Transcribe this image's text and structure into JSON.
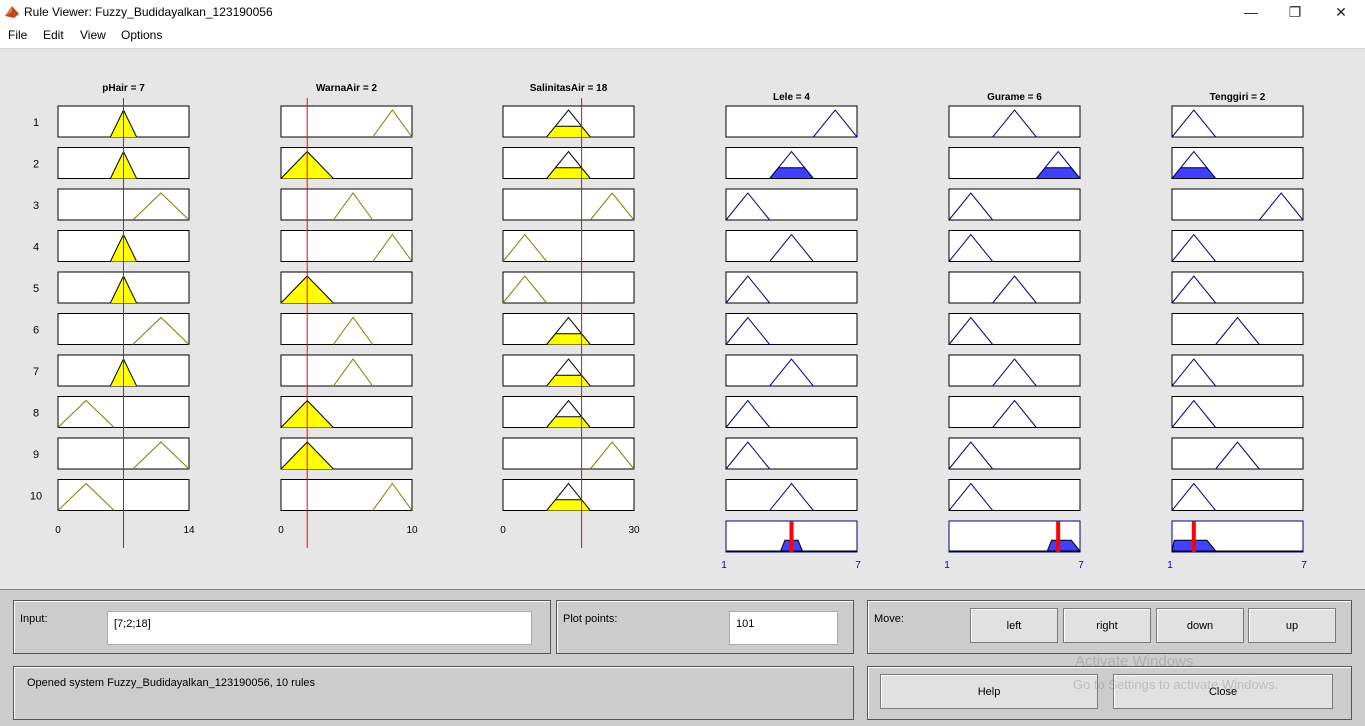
{
  "window": {
    "title": "Rule Viewer: Fuzzy_Budidayalkan_123190056",
    "minimize": "—",
    "maximize": "❐",
    "close": "✕"
  },
  "menu": [
    "File",
    "Edit",
    "View",
    "Options"
  ],
  "inputs": [
    {
      "label": "pHair = 7",
      "min": "0",
      "max": "14",
      "range": [
        0,
        14
      ],
      "value": 7,
      "rules": [
        {
          "type": "tri",
          "p": [
            5.6,
            7,
            8.4
          ]
        },
        {
          "type": "tri",
          "p": [
            5.6,
            7,
            8.4
          ]
        },
        {
          "type": "tri",
          "p": [
            8,
            11,
            14
          ]
        },
        {
          "type": "tri",
          "p": [
            5.6,
            7,
            8.4
          ]
        },
        {
          "type": "tri",
          "p": [
            5.6,
            7,
            8.4
          ]
        },
        {
          "type": "tri",
          "p": [
            8,
            11,
            14
          ]
        },
        {
          "type": "tri",
          "p": [
            5.6,
            7,
            8.4
          ]
        },
        {
          "type": "tri",
          "p": [
            0,
            3,
            6
          ]
        },
        {
          "type": "tri",
          "p": [
            8,
            11,
            14
          ]
        },
        {
          "type": "tri",
          "p": [
            0,
            3,
            6
          ]
        }
      ]
    },
    {
      "label": "WarnaAir = 2",
      "min": "0",
      "max": "10",
      "range": [
        0,
        10
      ],
      "value": 2,
      "rules": [
        {
          "type": "tri",
          "p": [
            7,
            8.5,
            10
          ]
        },
        {
          "type": "tri",
          "p": [
            0,
            2,
            4
          ]
        },
        {
          "type": "tri",
          "p": [
            4,
            5.5,
            7
          ]
        },
        {
          "type": "tri",
          "p": [
            7,
            8.5,
            10
          ]
        },
        {
          "type": "tri",
          "p": [
            0,
            2,
            4
          ]
        },
        {
          "type": "tri",
          "p": [
            4,
            5.5,
            7
          ]
        },
        {
          "type": "tri",
          "p": [
            4,
            5.5,
            7
          ]
        },
        {
          "type": "tri",
          "p": [
            0,
            2,
            4
          ]
        },
        {
          "type": "tri",
          "p": [
            0,
            2,
            4
          ]
        },
        {
          "type": "tri",
          "p": [
            7,
            8.5,
            10
          ]
        }
      ]
    },
    {
      "label": "SalinitasAir = 18",
      "min": "0",
      "max": "30",
      "range": [
        0,
        30
      ],
      "value": 18,
      "rules": [
        {
          "type": "tri",
          "p": [
            10,
            15,
            20
          ]
        },
        {
          "type": "tri",
          "p": [
            10,
            15,
            20
          ]
        },
        {
          "type": "tri",
          "p": [
            20,
            25,
            30
          ]
        },
        {
          "type": "tri",
          "p": [
            0,
            5,
            10
          ]
        },
        {
          "type": "tri",
          "p": [
            0,
            5,
            10
          ]
        },
        {
          "type": "tri",
          "p": [
            10,
            15,
            20
          ]
        },
        {
          "type": "tri",
          "p": [
            10,
            15,
            20
          ]
        },
        {
          "type": "tri",
          "p": [
            10,
            15,
            20
          ]
        },
        {
          "type": "tri",
          "p": [
            20,
            25,
            30
          ]
        },
        {
          "type": "tri",
          "p": [
            10,
            15,
            20
          ]
        }
      ]
    }
  ],
  "outputs": [
    {
      "label": "Lele = 4",
      "min": "1",
      "max": "7",
      "range": [
        1,
        7
      ],
      "value": 4,
      "rules": [
        {
          "p": [
            5,
            6,
            7
          ]
        },
        {
          "p": [
            3,
            4,
            5
          ]
        },
        {
          "p": [
            1,
            2,
            3
          ]
        },
        {
          "p": [
            3,
            4,
            5
          ]
        },
        {
          "p": [
            1,
            2,
            3
          ]
        },
        {
          "p": [
            1,
            2,
            3
          ]
        },
        {
          "p": [
            3,
            4,
            5
          ]
        },
        {
          "p": [
            1,
            2,
            3
          ]
        },
        {
          "p": [
            1,
            2,
            3
          ]
        },
        {
          "p": [
            3,
            4,
            5
          ]
        }
      ],
      "agg": [
        [
          1,
          0
        ],
        [
          3.5,
          0
        ],
        [
          3.7,
          0.4
        ],
        [
          4.3,
          0.4
        ],
        [
          4.5,
          0
        ],
        [
          7,
          0
        ]
      ]
    },
    {
      "label": "Gurame = 6",
      "min": "1",
      "max": "7",
      "range": [
        1,
        7
      ],
      "value": 6,
      "rules": [
        {
          "p": [
            3,
            4,
            5
          ]
        },
        {
          "p": [
            5,
            6,
            7
          ]
        },
        {
          "p": [
            1,
            2,
            3
          ]
        },
        {
          "p": [
            1,
            2,
            3
          ]
        },
        {
          "p": [
            3,
            4,
            5
          ]
        },
        {
          "p": [
            1,
            2,
            3
          ]
        },
        {
          "p": [
            3,
            4,
            5
          ]
        },
        {
          "p": [
            3,
            4,
            5
          ]
        },
        {
          "p": [
            1,
            2,
            3
          ]
        },
        {
          "p": [
            1,
            2,
            3
          ]
        }
      ],
      "agg": [
        [
          1,
          0
        ],
        [
          5.5,
          0
        ],
        [
          5.7,
          0.4
        ],
        [
          6.6,
          0.4
        ],
        [
          7,
          0
        ]
      ]
    },
    {
      "label": "Tenggiri = 2",
      "min": "1",
      "max": "7",
      "range": [
        1,
        7
      ],
      "value": 2,
      "rules": [
        {
          "p": [
            1,
            2,
            3
          ]
        },
        {
          "p": [
            1,
            2,
            3
          ]
        },
        {
          "p": [
            5,
            6,
            7
          ]
        },
        {
          "p": [
            1,
            2,
            3
          ]
        },
        {
          "p": [
            1,
            2,
            3
          ]
        },
        {
          "p": [
            3,
            4,
            5
          ]
        },
        {
          "p": [
            1,
            2,
            3
          ]
        },
        {
          "p": [
            1,
            2,
            3
          ]
        },
        {
          "p": [
            3,
            4,
            5
          ]
        },
        {
          "p": [
            1,
            2,
            3
          ]
        }
      ],
      "agg": [
        [
          1,
          0
        ],
        [
          1.1,
          0.4
        ],
        [
          2.6,
          0.4
        ],
        [
          3,
          0
        ],
        [
          7,
          0
        ]
      ]
    }
  ],
  "rule_numbers": [
    "1",
    "2",
    "3",
    "4",
    "5",
    "6",
    "7",
    "8",
    "9",
    "10"
  ],
  "input_panel": {
    "label": "Input:",
    "value": "[7;2;18]"
  },
  "plot_panel": {
    "label": "Plot points:",
    "value": "101"
  },
  "move_panel": {
    "label": "Move:",
    "left": "left",
    "right": "right",
    "down": "down",
    "up": "up"
  },
  "status": "Opened system Fuzzy_Budidayalkan_123190056, 10 rules",
  "help_label": "Help",
  "close_label": "Close",
  "watermark": {
    "line1": "Activate Windows",
    "line2": "Go to Settings to activate Windows."
  },
  "colors": {
    "input_fill": "#ffff00",
    "input_stroke": "#808000",
    "output_fill": "#4040ff",
    "output_stroke": "#000080",
    "red_line": "#ff0000"
  }
}
